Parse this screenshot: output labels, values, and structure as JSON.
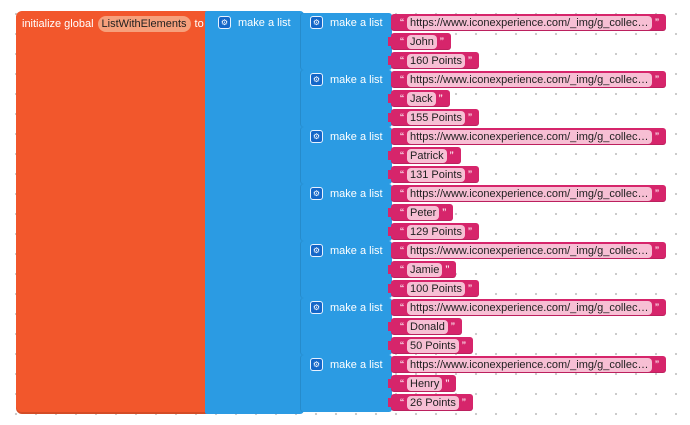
{
  "global_block": {
    "label_prefix": "initialize global",
    "variable_name": "ListWithElements",
    "label_suffix": "to",
    "color": "#f2572c"
  },
  "outer_list": {
    "label": "make a list",
    "color": "#2b9be3"
  },
  "inner_label": "make a list",
  "gear_icon": "gear-icon",
  "text_color": "#d6256b",
  "entries": [
    {
      "url": "https://www.iconexperience.com/_img/g_collection…",
      "name": "John",
      "points": "160 Points"
    },
    {
      "url": "https://www.iconexperience.com/_img/g_collection…",
      "name": "Jack",
      "points": "155 Points"
    },
    {
      "url": "https://www.iconexperience.com/_img/g_collection…",
      "name": "Patrick",
      "points": "131 Points"
    },
    {
      "url": "https://www.iconexperience.com/_img/g_collection…",
      "name": "Peter",
      "points": "129 Points"
    },
    {
      "url": "https://www.iconexperience.com/_img/g_collection…",
      "name": "Jamie",
      "points": "100 Points"
    },
    {
      "url": "https://www.iconexperience.com/_img/g_collection…",
      "name": "Donald",
      "points": "50 Points"
    },
    {
      "url": "https://www.iconexperience.com/_img/g_collection…",
      "name": "Henry",
      "points": "26 Points"
    }
  ]
}
